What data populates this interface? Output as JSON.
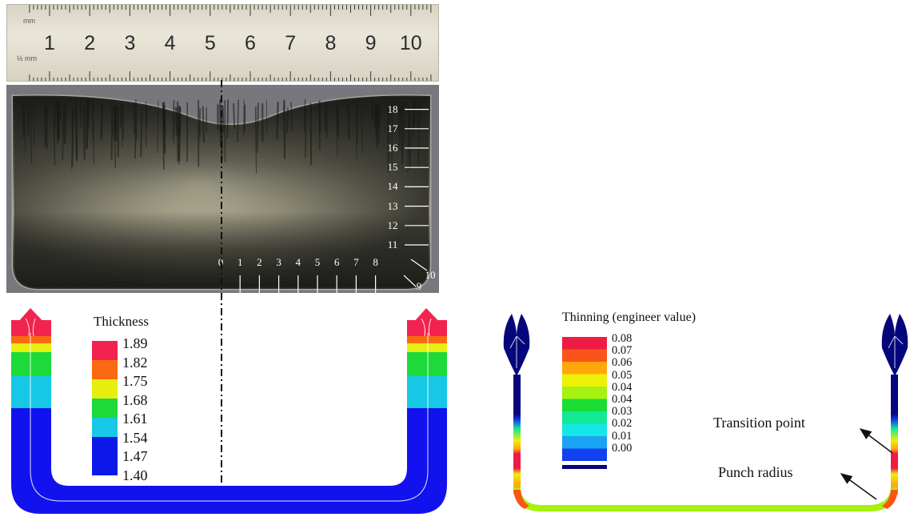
{
  "ruler": {
    "top_unit": "mm",
    "bottom_unit": "½ mm",
    "numbers": [
      "1",
      "2",
      "3",
      "4",
      "5",
      "6",
      "7",
      "8",
      "9",
      "10",
      "1"
    ]
  },
  "photo_scale": {
    "bottom_labels": [
      "0",
      "1",
      "2",
      "3",
      "4",
      "5",
      "6",
      "7",
      "8"
    ],
    "corner_labels": [
      "9",
      "10"
    ],
    "side_labels": [
      "11",
      "12",
      "13",
      "14",
      "15",
      "16",
      "17",
      "18"
    ]
  },
  "thickness_legend": {
    "title": "Thickness",
    "values": [
      "1.89",
      "1.82",
      "1.75",
      "1.68",
      "1.61",
      "1.54",
      "1.47",
      "1.40"
    ],
    "colors": [
      "#f2234f",
      "#fa6a10",
      "#e6ef10",
      "#1ed93a",
      "#16c8e6",
      "#0c18e8"
    ]
  },
  "thinning_legend": {
    "title": "Thinning (engineer value)",
    "values": [
      "0.08",
      "0.07",
      "0.06",
      "0.05",
      "0.04",
      "0.04",
      "0.03",
      "0.02",
      "0.01",
      "0.00"
    ],
    "colors": [
      "#ee1c44",
      "#fb5418",
      "#ffa70d",
      "#eef008",
      "#a6f210",
      "#19dd33",
      "#13e895",
      "#15e6e6",
      "#1aa2f3",
      "#1240f2",
      "#06067c"
    ]
  },
  "annotations": {
    "transition_point": "Transition point",
    "punch_radius": "Punch radius"
  }
}
